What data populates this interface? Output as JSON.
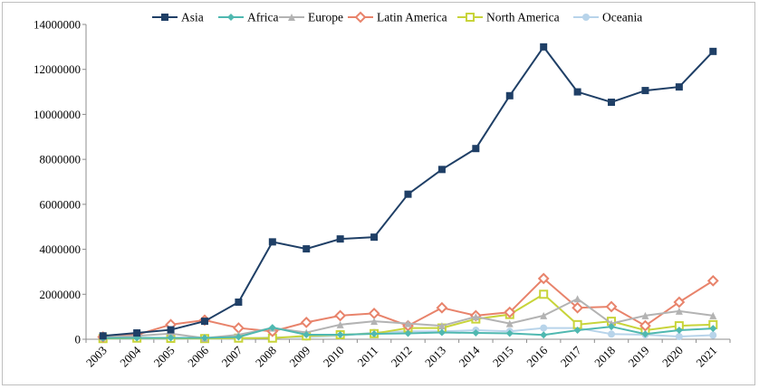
{
  "chart_data": {
    "type": "line",
    "title": "",
    "xlabel": "",
    "ylabel": "",
    "ylim": [
      0,
      14000000
    ],
    "yticks": [
      0,
      2000000,
      4000000,
      6000000,
      8000000,
      10000000,
      12000000,
      14000000
    ],
    "ytick_labels": [
      "0",
      "2000000",
      "4000000",
      "6000000",
      "8000000",
      "10000000",
      "12000000",
      "14000000"
    ],
    "grid": false,
    "legend_position": "top",
    "categories": [
      "2003",
      "2004",
      "2005",
      "2006",
      "2007",
      "2008",
      "2009",
      "2010",
      "2011",
      "2012",
      "2013",
      "2014",
      "2015",
      "2016",
      "2017",
      "2018",
      "2019",
      "2020",
      "2021"
    ],
    "series": [
      {
        "name": "Asia",
        "color": "#1f3f66",
        "marker": "square-filled",
        "values": [
          150000,
          280000,
          420000,
          800000,
          1650000,
          4330000,
          4020000,
          4460000,
          4540000,
          6450000,
          7550000,
          8480000,
          10830000,
          13000000,
          11000000,
          10540000,
          11060000,
          11220000,
          12800000
        ]
      },
      {
        "name": "Africa",
        "color": "#4fb8b0",
        "marker": "diamond-filled",
        "values": [
          50000,
          60000,
          60000,
          60000,
          100000,
          520000,
          200000,
          200000,
          240000,
          260000,
          300000,
          280000,
          260000,
          190000,
          400000,
          560000,
          230000,
          400000,
          480000
        ]
      },
      {
        "name": "Europe",
        "color": "#b3b3b3",
        "marker": "triangle-filled",
        "values": [
          100000,
          150000,
          250000,
          50000,
          200000,
          500000,
          300000,
          650000,
          800000,
          700000,
          600000,
          1000000,
          700000,
          1050000,
          1800000,
          700000,
          1050000,
          1250000,
          1050000
        ]
      },
      {
        "name": "Latin America",
        "color": "#e8836b",
        "marker": "diamond-open",
        "values": [
          100000,
          200000,
          650000,
          850000,
          500000,
          350000,
          750000,
          1050000,
          1150000,
          600000,
          1400000,
          1050000,
          1200000,
          2700000,
          1400000,
          1450000,
          600000,
          1650000,
          2600000
        ]
      },
      {
        "name": "North America",
        "color": "#c8d43a",
        "marker": "square-open",
        "values": [
          30000,
          50000,
          40000,
          30000,
          50000,
          50000,
          150000,
          200000,
          250000,
          500000,
          500000,
          900000,
          1100000,
          2000000,
          650000,
          800000,
          400000,
          600000,
          650000
        ]
      },
      {
        "name": "Oceania",
        "color": "#b8d4ea",
        "marker": "circle-filled",
        "values": [
          20000,
          30000,
          30000,
          20000,
          30000,
          80000,
          100000,
          150000,
          300000,
          350000,
          350000,
          400000,
          350000,
          500000,
          500000,
          230000,
          200000,
          120000,
          180000
        ]
      }
    ]
  }
}
